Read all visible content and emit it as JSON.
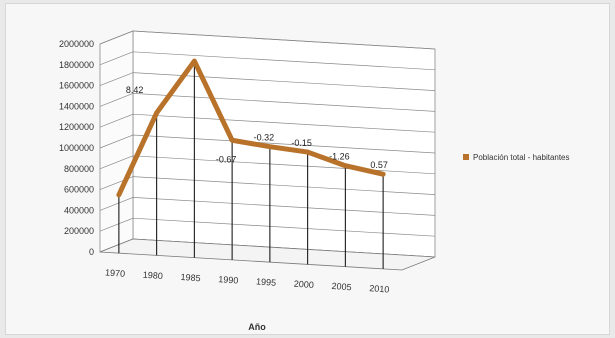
{
  "chart_data": {
    "type": "line",
    "x": [
      "1970",
      "1980",
      "1985",
      "1990",
      "1995",
      "2000",
      "2005",
      "2010"
    ],
    "series": [
      {
        "name": "Población total - habitantes",
        "values": [
          560000,
          1370000,
          1890000,
          1150000,
          1110000,
          1080000,
          970000,
          910000
        ],
        "color": "#b8722a"
      }
    ],
    "point_labels": [
      "",
      "8.42",
      "",
      "-0.67",
      "-0.32",
      "-0.15",
      "-1.26",
      "0.57"
    ],
    "xlabel": "Año",
    "ylabel": "",
    "ylim": [
      0,
      2000000
    ],
    "yticks": [
      "0",
      "200000",
      "400000",
      "600000",
      "800000",
      "1000000",
      "1200000",
      "1400000",
      "1600000",
      "1800000",
      "2000000"
    ],
    "grid": true,
    "three_d": true,
    "legend_position": "right"
  }
}
